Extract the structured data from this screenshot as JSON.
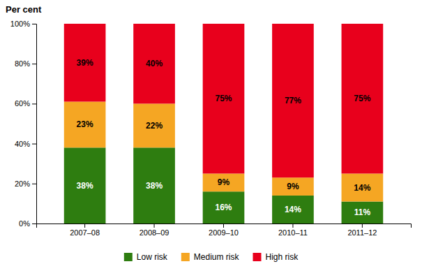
{
  "chart_data": {
    "type": "bar",
    "stacked": true,
    "data_labels": true,
    "grid": false,
    "legend": "bottom",
    "ylabel": "Per cent",
    "categories": [
      "2007–08",
      "2008–09",
      "2009–10",
      "2010–11",
      "2011–12"
    ],
    "series": [
      {
        "name": "Low risk",
        "color": "#2e7d10",
        "values": [
          38,
          38,
          16,
          14,
          11
        ],
        "value_labels": [
          "38%",
          "38%",
          "16%",
          "14%",
          "11%"
        ]
      },
      {
        "name": "Medium risk",
        "color": "#f5a623",
        "values": [
          23,
          22,
          9,
          9,
          14
        ],
        "value_labels": [
          "23%",
          "22%",
          "9%",
          "9%",
          "14%"
        ]
      },
      {
        "name": "High risk",
        "color": "#e8001c",
        "values": [
          39,
          40,
          75,
          77,
          75
        ],
        "value_labels": [
          "39%",
          "40%",
          "75%",
          "77%",
          "75%"
        ]
      }
    ],
    "ylim": [
      0,
      100
    ],
    "yticks": [
      {
        "value": 0,
        "label": "0%"
      },
      {
        "value": 20,
        "label": "20%"
      },
      {
        "value": 40,
        "label": "40%"
      },
      {
        "value": 60,
        "label": "60%"
      },
      {
        "value": 80,
        "label": "80%"
      },
      {
        "value": 100,
        "label": "100%"
      }
    ]
  }
}
